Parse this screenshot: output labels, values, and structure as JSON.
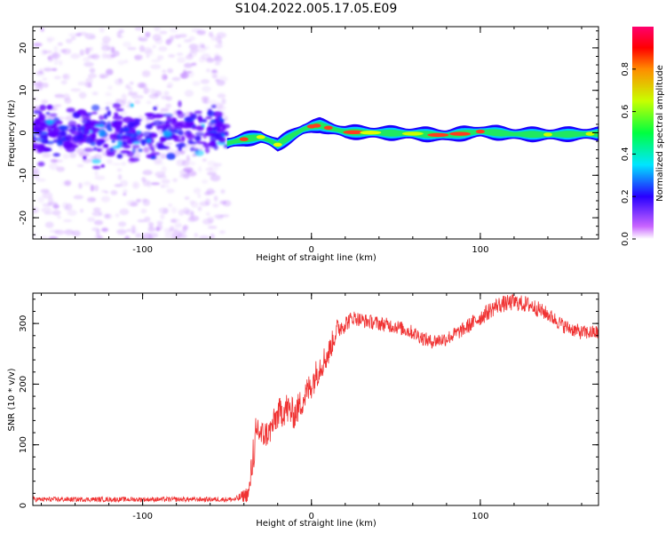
{
  "figure": {
    "title": "S104.2022.005.17.05.E09"
  },
  "chart_data": [
    {
      "type": "heatmap",
      "panel": "spectrogram",
      "xlabel": "Height of straight line (km)",
      "ylabel": "Frequency (Hz)",
      "xlim": [
        -165,
        170
      ],
      "ylim": [
        -25,
        25
      ],
      "xticks": [
        -100,
        0,
        100
      ],
      "xticklabels": [
        "-100",
        "0",
        "100"
      ],
      "yticks": [
        -20,
        -10,
        0,
        10,
        20
      ],
      "yticklabels": [
        "-20",
        "-10",
        "0",
        "10",
        "20"
      ],
      "grid": false,
      "noise_region": {
        "x_range": [
          -165,
          -50
        ],
        "core_band_hz": [
          -5,
          5
        ]
      },
      "signal_ridge": {
        "x": [
          -50,
          -40,
          -30,
          -25,
          -20,
          -15,
          -10,
          -5,
          0,
          5,
          10,
          20,
          40,
          60,
          80,
          100,
          120,
          140,
          170
        ],
        "frequency_hz": [
          -2.5,
          -1.5,
          -1.0,
          -1.8,
          -2.8,
          -1.5,
          -0.3,
          0.8,
          1.5,
          1.8,
          1.2,
          0.2,
          0.0,
          -0.2,
          -0.6,
          0.3,
          -0.3,
          -0.4,
          -0.2
        ]
      },
      "colorbar": {
        "label": "Normalized spectral amplitude",
        "range": [
          0.0,
          1.0
        ],
        "ticks": [
          0.0,
          0.2,
          0.4,
          0.6,
          0.8
        ],
        "ticklabels": [
          "0.0",
          "0.2",
          "0.4",
          "0.6",
          "0.8"
        ]
      }
    },
    {
      "type": "line",
      "panel": "snr",
      "xlabel": "Height of straight line (km)",
      "ylabel": "SNR (10 * v/v)",
      "xlim": [
        -165,
        170
      ],
      "ylim": [
        0,
        350
      ],
      "xticks": [
        -100,
        0,
        100
      ],
      "xticklabels": [
        "-100",
        "0",
        "100"
      ],
      "yticks": [
        0,
        100,
        200,
        300
      ],
      "yticklabels": [
        "0",
        "100",
        "200",
        "300"
      ],
      "grid": false,
      "line_color": "#f03232",
      "series": [
        {
          "x": [
            -165,
            -140,
            -120,
            -100,
            -80,
            -60,
            -45,
            -37,
            -34,
            -32,
            -30,
            -25,
            -20,
            -15,
            -10,
            -5,
            0,
            5,
            10,
            15,
            20,
            25,
            30,
            40,
            50,
            60,
            70,
            80,
            90,
            100,
            110,
            120,
            130,
            140,
            150,
            160,
            170
          ],
          "y": [
            10,
            10,
            10,
            10,
            10,
            10,
            10,
            20,
            100,
            130,
            115,
            120,
            150,
            160,
            150,
            175,
            200,
            230,
            250,
            290,
            300,
            310,
            305,
            300,
            295,
            285,
            270,
            275,
            290,
            310,
            330,
            335,
            330,
            315,
            295,
            285,
            285
          ],
          "noise_amplitude": [
            4,
            4,
            4,
            4,
            4,
            4,
            4,
            15,
            40,
            30,
            25,
            22,
            25,
            28,
            25,
            25,
            25,
            25,
            22,
            18,
            15,
            12,
            12,
            12,
            12,
            12,
            12,
            12,
            12,
            14,
            14,
            14,
            14,
            12,
            12,
            12,
            12
          ]
        }
      ]
    }
  ]
}
